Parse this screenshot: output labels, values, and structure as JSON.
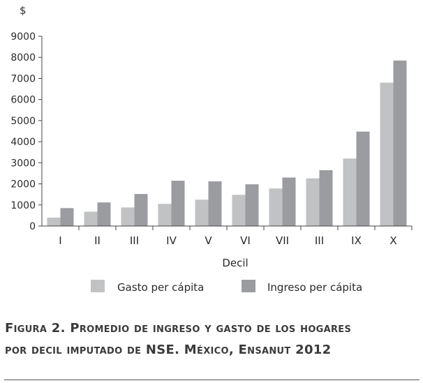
{
  "chart_data": {
    "type": "bar",
    "title": "",
    "ylabel": "$",
    "xlabel": "Decil",
    "categories": [
      "I",
      "II",
      "III",
      "IV",
      "V",
      "VI",
      "VII",
      "III",
      "IX",
      "X"
    ],
    "ylim": [
      0,
      9000
    ],
    "yticks": [
      0,
      1000,
      2000,
      3000,
      4000,
      5000,
      6000,
      7000,
      8000,
      9000
    ],
    "series": [
      {
        "name": "Gasto per cápita",
        "color": "#c0c2c4",
        "values": [
          400,
          680,
          880,
          1050,
          1250,
          1480,
          1780,
          2260,
          3200,
          6800
        ]
      },
      {
        "name": "Ingreso per cápita",
        "color": "#9a9ca0",
        "values": [
          850,
          1120,
          1520,
          2150,
          2120,
          1980,
          2300,
          2650,
          4480,
          7850
        ]
      }
    ],
    "legend_position": "bottom"
  },
  "caption": {
    "line1": "Figura 2. Promedio de ingreso y gasto de los hogares",
    "line2": "por decil imputado de NSE. México, Ensanut 2012"
  }
}
